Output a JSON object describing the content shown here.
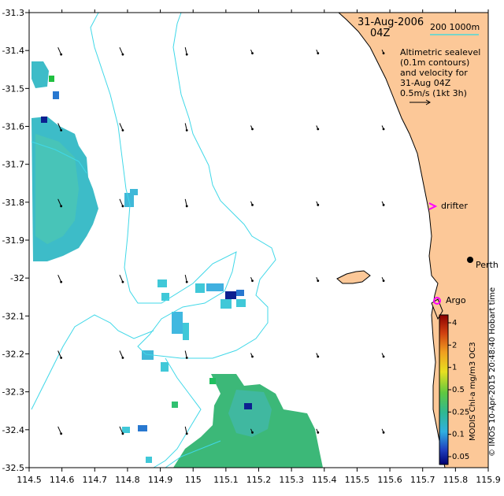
{
  "title": {
    "date": "31-Aug-2006",
    "time": "04Z"
  },
  "scale_bar": {
    "label": "200  1000m",
    "color": "#4dd9d9"
  },
  "legend": {
    "lines": [
      "Altimetric sealevel",
      "(0.1m contours)",
      "and velocity for",
      "31-Aug 04Z",
      "0.5m/s (1kt 3h)"
    ]
  },
  "markers": {
    "drifter": {
      "label": "drifter",
      "color": "#ff00ff"
    },
    "argo": {
      "label": "Argo",
      "color": "#ff00ff"
    },
    "city": {
      "label": "Perth"
    }
  },
  "axes": {
    "x_ticks": [
      "114.5",
      "114.6",
      "114.7",
      "114.8",
      "114.9",
      "115",
      "115.1",
      "115.2",
      "115.3",
      "115.4",
      "115.5",
      "115.6",
      "115.7",
      "115.8",
      "115.9"
    ],
    "y_ticks": [
      "-31.3",
      "-31.4",
      "-31.5",
      "-31.6",
      "-31.7",
      "-31.8",
      "-31.9",
      "-32",
      "-32.1",
      "-32.2",
      "-32.3",
      "-32.4",
      "-32.5"
    ],
    "x_range": [
      114.5,
      115.9
    ],
    "y_range": [
      -32.5,
      -31.3
    ]
  },
  "colorbar": {
    "ticks": [
      "4",
      "2",
      "1",
      "0.5",
      "0.25",
      "0.1",
      "0.05"
    ],
    "title": "MODIS Chl-a mg/m3 OC3"
  },
  "credit": "© IMOS 10-Apr-2015 20:48:40 Hobart time",
  "colors": {
    "land": "#fcc898",
    "contour": "#40d8e8",
    "chl_low": "#3cb878",
    "chl_mid": "#40c8d8"
  }
}
